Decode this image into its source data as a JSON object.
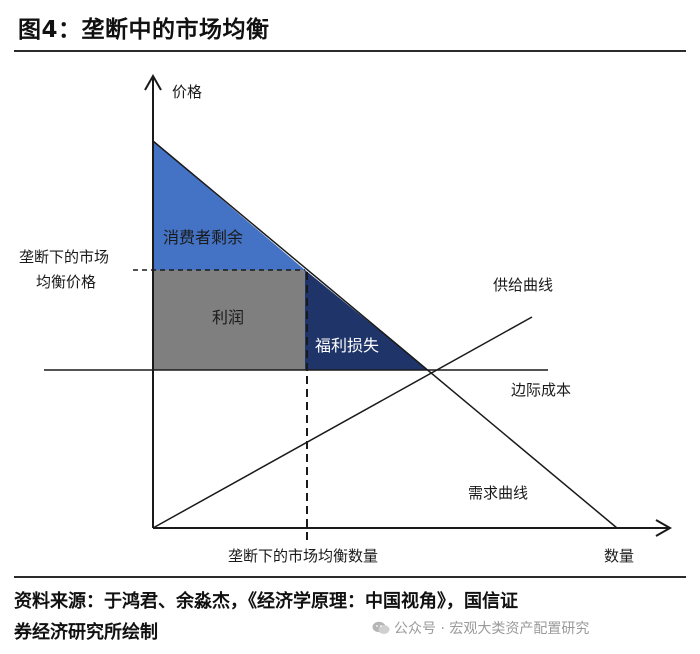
{
  "figure": {
    "title": "图4：垄断中的市场均衡"
  },
  "diagram": {
    "y_axis_label": "价格",
    "x_axis_label": "数量",
    "monopoly_price_label_line1": "垄断下的市场",
    "monopoly_price_label_line2": "均衡价格",
    "monopoly_quantity_label": "垄断下的市场均衡数量",
    "consumer_surplus_label": "消费者剩余",
    "profit_label": "利润",
    "welfare_loss_label": "福利损失",
    "supply_curve_label": "供给曲线",
    "marginal_cost_label": "边际成本",
    "demand_curve_label": "需求曲线",
    "colors": {
      "consumer_surplus": "#4472c4",
      "profit": "#7f7f7f",
      "welfare_loss": "#1f3468",
      "lines": "#1a1a1a"
    }
  },
  "footer": {
    "source_line1": "资料来源：于鸿君、余淼杰，《经济学原理：中国视角》，国信证",
    "source_line2": "券经济研究所绘制",
    "watermark": "公众号 · 宏观大类资产配置研究"
  }
}
